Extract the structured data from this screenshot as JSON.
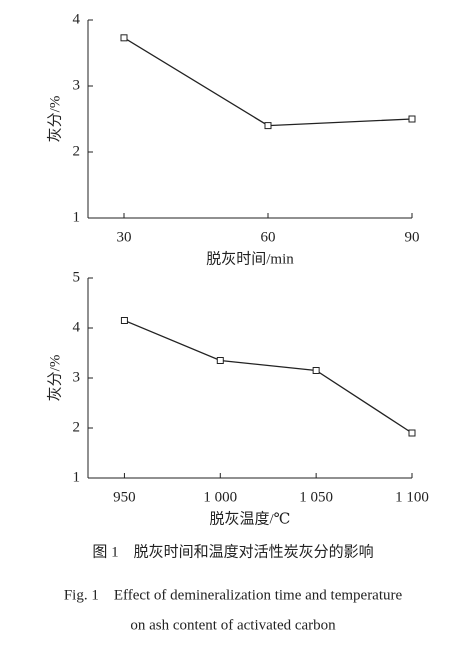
{
  "chart_data": [
    {
      "type": "line",
      "x_label": "脱灰时间/min",
      "y_label": "灰分/%",
      "x": [
        30,
        60,
        90
      ],
      "values": [
        3.73,
        2.4,
        2.5
      ],
      "color": "#222222",
      "marker": "square",
      "xlim": [
        22.5,
        90
      ],
      "xticks": [
        30,
        60,
        90
      ],
      "ylim": [
        1,
        4
      ],
      "yticks": [
        1,
        2,
        3,
        4
      ]
    },
    {
      "type": "line",
      "x_label": "脱灰温度/℃",
      "y_label": "灰分/%",
      "x": [
        950,
        1000,
        1050,
        1100
      ],
      "values": [
        4.15,
        3.35,
        3.15,
        1.9
      ],
      "color": "#222222",
      "marker": "square",
      "xlim": [
        931,
        1100
      ],
      "xticks": [
        950,
        {
          "value": 1000,
          "label": "1 000"
        },
        {
          "value": 1050,
          "label": "1 050"
        },
        {
          "value": 1100,
          "label": "1 100"
        }
      ],
      "ylim": [
        1,
        5
      ],
      "yticks": [
        1,
        2,
        3,
        4,
        5
      ]
    }
  ],
  "caption": {
    "cn": "图 1　脱灰时间和温度对活性炭灰分的影响",
    "en1": "Fig. 1　Effect of demineralization time and temperature",
    "en2": "on ash content of activated carbon"
  }
}
